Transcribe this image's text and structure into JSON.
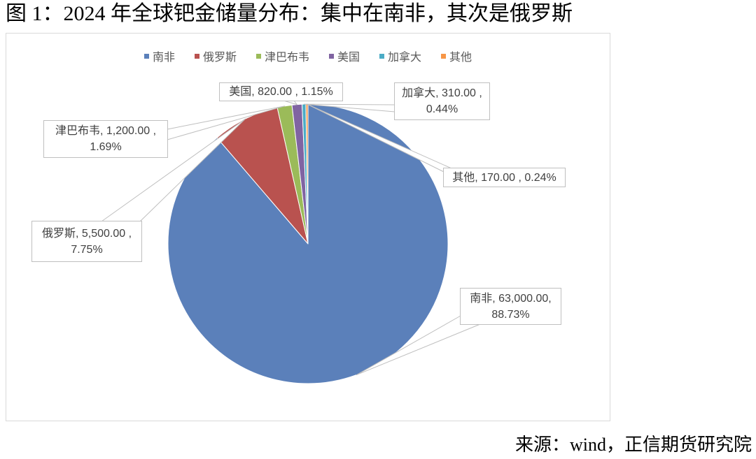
{
  "chart_data": {
    "type": "pie",
    "title": "图 1：2024 年全球钯金储量分布：集中在南非，其次是俄罗斯",
    "categories": [
      "南非",
      "俄罗斯",
      "津巴布韦",
      "美国",
      "加拿大",
      "其他"
    ],
    "values": [
      63000,
      5500,
      1200,
      820,
      310,
      170
    ],
    "percentages": [
      88.73,
      7.75,
      1.69,
      1.15,
      0.44,
      0.24
    ],
    "colors": [
      "#5B80BA",
      "#B9524F",
      "#9BBB59",
      "#8064A2",
      "#4BACC6",
      "#F79646"
    ],
    "data_labels": [
      [
        "南非, 63,000.00,",
        "88.73%"
      ],
      [
        "俄罗斯, 5,500.00 ,",
        "7.75%"
      ],
      [
        "津巴布韦, 1,200.00 ,",
        "1.69%"
      ],
      [
        "美国, 820.00 , 1.15%"
      ],
      [
        "加拿大, 310.00 ,",
        "0.44%"
      ],
      [
        "其他, 170.00 , 0.24%"
      ]
    ],
    "legend": "top"
  },
  "source": "来源：wind，正信期货研究院"
}
